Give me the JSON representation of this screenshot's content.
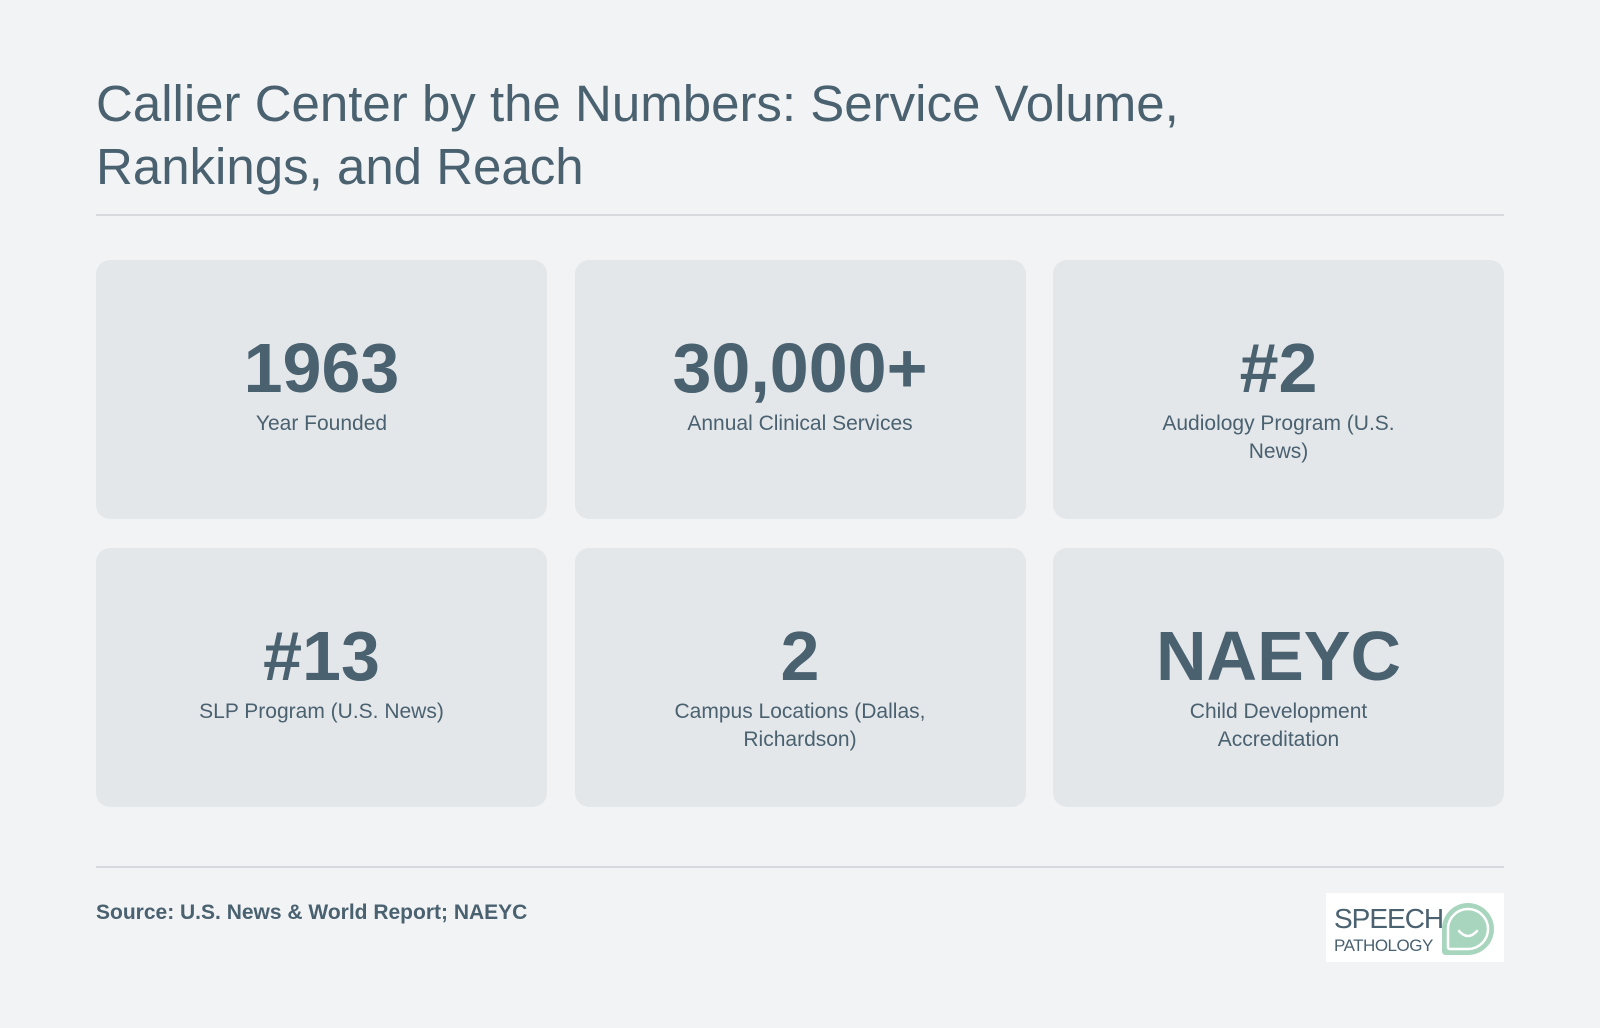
{
  "title": "Callier Center by the Numbers: Service Volume, Rankings, and Reach",
  "stats": [
    {
      "value": "1963",
      "label": "Year Founded"
    },
    {
      "value": "30,000+",
      "label": "Annual Clinical Services"
    },
    {
      "value": "#2",
      "label": "Audiology Program (U.S. News)"
    },
    {
      "value": "#13",
      "label": "SLP Program (U.S. News)"
    },
    {
      "value": "2",
      "label": "Campus Locations (Dallas, Richardson)"
    },
    {
      "value": "NAEYC",
      "label": "Child Development Accreditation"
    }
  ],
  "source": "Source: U.S. News & World Report; NAEYC",
  "logo": {
    "line1": "SPEECH",
    "line2": "PATHOLOGY",
    "icon": "speech-bubble-smile-icon"
  },
  "colors": {
    "background": "#f2f3f5",
    "card": "#e4e7ea",
    "text": "#4a6170",
    "logo_accent": "#a8d5bd"
  }
}
